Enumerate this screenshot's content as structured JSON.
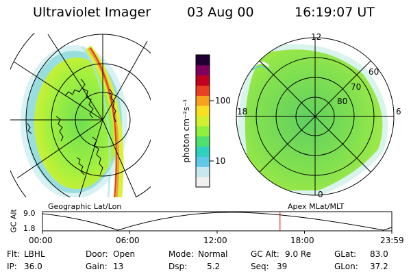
{
  "header": {
    "instrument": "Ultraviolet Imager",
    "date": "03 Aug 00",
    "time": "16:19:07 UT"
  },
  "colorbar": {
    "unit": "photon cm⁻²s⁻¹",
    "tick_labels": [
      "100",
      "10"
    ],
    "colors": [
      "#f0f0f0",
      "#c8e8f0",
      "#60c8e8",
      "#30d0c0",
      "#50e070",
      "#90f040",
      "#d0f030",
      "#f8e020",
      "#f8a020",
      "#e84020",
      "#c00020",
      "#800060",
      "#200030"
    ]
  },
  "geo_panel": {
    "caption": "Geographic Lat/Lon"
  },
  "polar_panel": {
    "caption": "Apex MLat/MLT",
    "mlt_labels": {
      "top": "12",
      "left": "18",
      "right": "6",
      "bottom": "0"
    },
    "lat_labels": [
      "60",
      "70",
      "80"
    ]
  },
  "altitude_plot": {
    "ylabel": "GC Alt",
    "y_ticks": [
      "9.0",
      "1.8"
    ],
    "x_ticks": [
      "00:00",
      "06:00",
      "12:00",
      "18:00",
      "23:59"
    ],
    "current_time_fraction": 0.68
  },
  "status": {
    "filter": {
      "label": "Flt:",
      "value": "LBHL"
    },
    "door": {
      "label": "Door:",
      "value": "Open"
    },
    "mode": {
      "label": "Mode:",
      "value": "Normal"
    },
    "gc_alt": {
      "label": "GC Alt:",
      "value": "9.0 Re"
    },
    "glat": {
      "label": "GLat:",
      "value": "83.0"
    },
    "ip": {
      "label": "IP:",
      "value": "36.0"
    },
    "gain": {
      "label": "Gain:",
      "value": "13"
    },
    "dsp": {
      "label": "Dsp:",
      "value": "5.2"
    },
    "seq": {
      "label": "Seq:",
      "value": "39"
    },
    "glon": {
      "label": "GLon:",
      "value": "37.2"
    }
  }
}
